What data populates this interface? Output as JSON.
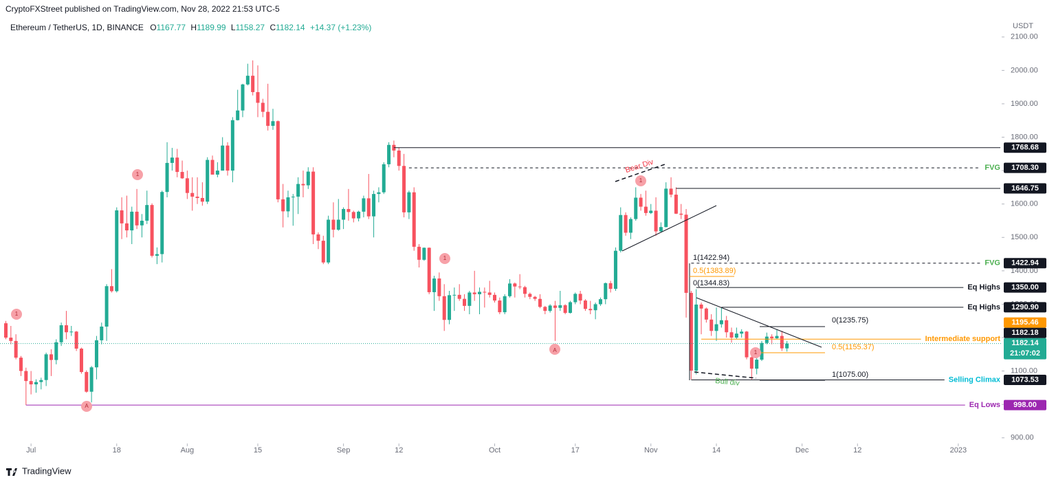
{
  "chart_data": {
    "type": "candlestick",
    "subtitle": "CryptoFXStreet published on TradingView.com, Nov 28, 2022 21:53 UTC-5",
    "title": "Ethereum / TetherUS, 1D, BINANCE",
    "ohlc_labels": [
      "O",
      "H",
      "L",
      "C"
    ],
    "change": "+14.37 (+1.23%)",
    "unit": "USDT",
    "footer": "TradingView",
    "up_color": "#22ab94",
    "down_color": "#f7525f",
    "ylim": [
      883,
      2149
    ],
    "yticks": [
      {
        "value": 2100,
        "label": "2100.00"
      },
      {
        "value": 2000,
        "label": "2000.00"
      },
      {
        "value": 1900,
        "label": "1900.00"
      },
      {
        "value": 1800,
        "label": "1800.00"
      },
      {
        "value": 1700,
        "label": "1700.00"
      },
      {
        "value": 1600,
        "label": "1600.00"
      },
      {
        "value": 1500,
        "label": "1500.00"
      },
      {
        "value": 1400,
        "label": "1400.00"
      },
      {
        "value": 1300,
        "label": "1300.00"
      },
      {
        "value": 1200,
        "label": "1200.00"
      },
      {
        "value": 1100,
        "label": "1100.00"
      },
      {
        "value": 1000,
        "label": "1000.00"
      },
      {
        "value": 900,
        "label": "900.00"
      }
    ],
    "xticks": [
      {
        "value": "Jul 1",
        "label": "Jul"
      },
      {
        "value": "Jul 18",
        "label": "18"
      },
      {
        "value": "Aug 1",
        "label": "Aug"
      },
      {
        "value": "Aug 15",
        "label": "15"
      },
      {
        "value": "Sep 1",
        "label": "Sep"
      },
      {
        "value": "Sep 12",
        "label": "12"
      },
      {
        "value": "Oct 1",
        "label": "Oct"
      },
      {
        "value": "Oct 17",
        "label": "17"
      },
      {
        "value": "Nov 1",
        "label": "Nov"
      },
      {
        "value": "Nov 14",
        "label": "14"
      },
      {
        "value": "Dec 1",
        "label": "Dec"
      },
      {
        "value": "Dec 12",
        "label": "12"
      },
      {
        "value": "Jan 1",
        "label": "2023"
      }
    ],
    "x": [
      "Jun 26",
      "Jun 27",
      "Jun 28",
      "Jun 29",
      "Jun 30",
      "Jul 1",
      "Jul 2",
      "Jul 3",
      "Jul 4",
      "Jul 5",
      "Jul 6",
      "Jul 7",
      "Jul 8",
      "Jul 9",
      "Jul 10",
      "Jul 11",
      "Jul 12",
      "Jul 13",
      "Jul 14",
      "Jul 15",
      "Jul 16",
      "Jul 17",
      "Jul 18",
      "Jul 19",
      "Jul 20",
      "Jul 21",
      "Jul 22",
      "Jul 23",
      "Jul 24",
      "Jul 25",
      "Jul 26",
      "Jul 27",
      "Jul 28",
      "Jul 29",
      "Jul 30",
      "Jul 31",
      "Aug 1",
      "Aug 2",
      "Aug 3",
      "Aug 4",
      "Aug 5",
      "Aug 6",
      "Aug 7",
      "Aug 8",
      "Aug 9",
      "Aug 10",
      "Aug 11",
      "Aug 12",
      "Aug 13",
      "Aug 14",
      "Aug 15",
      "Aug 16",
      "Aug 17",
      "Aug 18",
      "Aug 19",
      "Aug 20",
      "Aug 21",
      "Aug 22",
      "Aug 23",
      "Aug 24",
      "Aug 25",
      "Aug 26",
      "Aug 27",
      "Aug 28",
      "Aug 29",
      "Aug 30",
      "Aug 31",
      "Sep 1",
      "Sep 2",
      "Sep 3",
      "Sep 4",
      "Sep 5",
      "Sep 6",
      "Sep 7",
      "Sep 8",
      "Sep 9",
      "Sep 10",
      "Sep 11",
      "Sep 12",
      "Sep 13",
      "Sep 14",
      "Sep 15",
      "Sep 16",
      "Sep 17",
      "Sep 18",
      "Sep 19",
      "Sep 20",
      "Sep 21",
      "Sep 22",
      "Sep 23",
      "Sep 24",
      "Sep 25",
      "Sep 26",
      "Sep 27",
      "Sep 28",
      "Sep 29",
      "Sep 30",
      "Oct 1",
      "Oct 2",
      "Oct 3",
      "Oct 4",
      "Oct 5",
      "Oct 6",
      "Oct 7",
      "Oct 8",
      "Oct 9",
      "Oct 10",
      "Oct 11",
      "Oct 12",
      "Oct 13",
      "Oct 14",
      "Oct 15",
      "Oct 16",
      "Oct 17",
      "Oct 18",
      "Oct 19",
      "Oct 20",
      "Oct 21",
      "Oct 22",
      "Oct 23",
      "Oct 24",
      "Oct 25",
      "Oct 26",
      "Oct 27",
      "Oct 28",
      "Oct 29",
      "Oct 30",
      "Oct 31",
      "Nov 1",
      "Nov 2",
      "Nov 3",
      "Nov 4",
      "Nov 5",
      "Nov 6",
      "Nov 7",
      "Nov 8",
      "Nov 9",
      "Nov 10",
      "Nov 11",
      "Nov 12",
      "Nov 13",
      "Nov 14",
      "Nov 15",
      "Nov 16",
      "Nov 17",
      "Nov 18",
      "Nov 19",
      "Nov 20",
      "Nov 21",
      "Nov 22",
      "Nov 23",
      "Nov 24",
      "Nov 25",
      "Nov 26",
      "Nov 27",
      "Nov 28"
    ],
    "open": [
      1243,
      1200,
      1190,
      1140,
      1100,
      1070,
      1060,
      1067,
      1073,
      1150,
      1133,
      1186,
      1237,
      1216,
      1218,
      1167,
      1097,
      1038,
      1111,
      1192,
      1233,
      1354,
      1339,
      1581,
      1542,
      1521,
      1577,
      1536,
      1550,
      1597,
      1445,
      1450,
      1636,
      1723,
      1739,
      1696,
      1677,
      1633,
      1622,
      1618,
      1607,
      1732,
      1688,
      1700,
      1775,
      1700,
      1851,
      1880,
      1958,
      1984,
      1935,
      1903,
      1876,
      1834,
      1848,
      1614,
      1578,
      1620,
      1622,
      1660,
      1656,
      1697,
      1509,
      1490,
      1425,
      1553,
      1523,
      1553,
      1585,
      1576,
      1557,
      1577,
      1617,
      1563,
      1630,
      1635,
      1719,
      1777,
      1760,
      1714,
      1575,
      1635,
      1472,
      1433,
      1469,
      1336,
      1377,
      1324,
      1253,
      1327,
      1328,
      1316,
      1295,
      1335,
      1330,
      1337,
      1335,
      1328,
      1311,
      1276,
      1324,
      1362,
      1353,
      1351,
      1331,
      1322,
      1316,
      1292,
      1280,
      1296,
      1289,
      1297,
      1274,
      1306,
      1331,
      1311,
      1286,
      1282,
      1300,
      1315,
      1363,
      1346,
      1460,
      1567,
      1514,
      1555,
      1619,
      1592,
      1573,
      1580,
      1518,
      1531,
      1646,
      1628,
      1571,
      1568,
      1334,
      1101,
      1299,
      1287,
      1254,
      1220,
      1240,
      1252,
      1216,
      1200,
      1212,
      1218,
      1141,
      1107,
      1134,
      1184,
      1203,
      1198,
      1205,
      1167.77
    ],
    "high": [
      1250,
      1235,
      1210,
      1145,
      1110,
      1100,
      1075,
      1080,
      1155,
      1165,
      1195,
      1245,
      1280,
      1235,
      1220,
      1170,
      1102,
      1115,
      1205,
      1245,
      1360,
      1405,
      1590,
      1620,
      1625,
      1592,
      1645,
      1570,
      1640,
      1602,
      1470,
      1640,
      1785,
      1768,
      1765,
      1730,
      1700,
      1680,
      1680,
      1665,
      1740,
      1745,
      1725,
      1800,
      1785,
      1860,
      1942,
      1960,
      2020,
      2030,
      2015,
      1915,
      1960,
      1885,
      1850,
      1660,
      1640,
      1630,
      1680,
      1700,
      1710,
      1710,
      1515,
      1505,
      1565,
      1605,
      1615,
      1590,
      1645,
      1580,
      1580,
      1625,
      1690,
      1640,
      1650,
      1725,
      1785,
      1790,
      1768,
      1750,
      1640,
      1650,
      1480,
      1470,
      1470,
      1385,
      1395,
      1360,
      1340,
      1350,
      1360,
      1330,
      1340,
      1400,
      1350,
      1350,
      1370,
      1335,
      1320,
      1330,
      1375,
      1365,
      1390,
      1355,
      1335,
      1325,
      1330,
      1295,
      1300,
      1310,
      1340,
      1300,
      1310,
      1335,
      1340,
      1315,
      1310,
      1305,
      1320,
      1365,
      1370,
      1470,
      1590,
      1575,
      1560,
      1650,
      1630,
      1640,
      1600,
      1620,
      1545,
      1665,
      1680,
      1650,
      1600,
      1585,
      1340,
      1345,
      1305,
      1290,
      1270,
      1290,
      1290,
      1265,
      1230,
      1230,
      1225,
      1220,
      1145,
      1140,
      1190,
      1215,
      1210,
      1225,
      1220,
      1189.99
    ],
    "low": [
      1195,
      1180,
      1135,
      1085,
      998,
      1030,
      1035,
      1045,
      1055,
      1085,
      1120,
      1175,
      1195,
      1205,
      1160,
      1092,
      1035,
      1006,
      1075,
      1180,
      1190,
      1335,
      1335,
      1495,
      1500,
      1480,
      1525,
      1500,
      1540,
      1440,
      1420,
      1425,
      1620,
      1700,
      1680,
      1675,
      1615,
      1580,
      1600,
      1595,
      1600,
      1688,
      1680,
      1700,
      1685,
      1665,
      1850,
      1860,
      1955,
      1925,
      1860,
      1860,
      1820,
      1822,
      1605,
      1530,
      1560,
      1535,
      1570,
      1620,
      1645,
      1480,
      1465,
      1420,
      1420,
      1500,
      1520,
      1525,
      1550,
      1545,
      1548,
      1560,
      1555,
      1500,
      1605,
      1630,
      1710,
      1740,
      1700,
      1560,
      1555,
      1460,
      1410,
      1430,
      1330,
      1280,
      1310,
      1220,
      1240,
      1280,
      1310,
      1280,
      1270,
      1310,
      1270,
      1290,
      1320,
      1305,
      1270,
      1270,
      1320,
      1320,
      1345,
      1320,
      1315,
      1310,
      1288,
      1270,
      1275,
      1190,
      1280,
      1270,
      1272,
      1300,
      1300,
      1280,
      1270,
      1255,
      1295,
      1300,
      1335,
      1340,
      1455,
      1505,
      1495,
      1550,
      1580,
      1565,
      1570,
      1505,
      1515,
      1530,
      1620,
      1570,
      1555,
      1260,
      1075,
      1090,
      1210,
      1245,
      1205,
      1190,
      1230,
      1200,
      1185,
      1195,
      1200,
      1135,
      1075,
      1090,
      1130,
      1180,
      1180,
      1195,
      1160,
      1158.27
    ],
    "close": [
      1200,
      1190,
      1140,
      1100,
      1070,
      1060,
      1067,
      1073,
      1150,
      1133,
      1186,
      1237,
      1216,
      1218,
      1167,
      1097,
      1038,
      1111,
      1192,
      1233,
      1354,
      1339,
      1581,
      1542,
      1521,
      1577,
      1536,
      1550,
      1597,
      1445,
      1450,
      1636,
      1723,
      1739,
      1696,
      1677,
      1633,
      1622,
      1618,
      1607,
      1732,
      1688,
      1700,
      1775,
      1700,
      1851,
      1880,
      1958,
      1984,
      1935,
      1903,
      1876,
      1834,
      1848,
      1614,
      1578,
      1620,
      1622,
      1660,
      1656,
      1697,
      1509,
      1490,
      1425,
      1553,
      1523,
      1553,
      1585,
      1576,
      1557,
      1577,
      1617,
      1563,
      1630,
      1635,
      1719,
      1777,
      1760,
      1714,
      1575,
      1635,
      1472,
      1433,
      1469,
      1336,
      1377,
      1324,
      1253,
      1327,
      1328,
      1316,
      1295,
      1335,
      1330,
      1337,
      1335,
      1328,
      1311,
      1276,
      1324,
      1362,
      1353,
      1351,
      1331,
      1322,
      1316,
      1292,
      1280,
      1296,
      1289,
      1297,
      1274,
      1306,
      1331,
      1311,
      1286,
      1282,
      1300,
      1315,
      1363,
      1346,
      1460,
      1567,
      1514,
      1555,
      1619,
      1592,
      1573,
      1580,
      1518,
      1531,
      1646,
      1628,
      1571,
      1568,
      1334,
      1101,
      1299,
      1287,
      1254,
      1220,
      1240,
      1252,
      1216,
      1200,
      1212,
      1218,
      1141,
      1107,
      1134,
      1184,
      1203,
      1198,
      1205,
      1167.77,
      1182.14
    ],
    "last_price_color": "#22ab94",
    "countdown": "21:07:02",
    "levels": [
      {
        "value": 1768.68,
        "label": "1768.68",
        "from": "Sep 11",
        "color": "#131722",
        "style": "solid",
        "box_color": "#131722"
      },
      {
        "value": 1708.3,
        "label": "1708.30",
        "tag": "FVG",
        "tag_color": "#4caf50",
        "from": "Sep 14",
        "color": "#131722",
        "style": "dashed",
        "box_color": "#131722"
      },
      {
        "value": 1646.75,
        "label": "1646.75",
        "from": "Nov 6",
        "color": "#131722",
        "style": "solid",
        "box_color": "#131722"
      },
      {
        "value": 1422.94,
        "label": "1422.94",
        "tag": "FVG",
        "tag_color": "#4caf50",
        "from": "Nov 9",
        "color": "#131722",
        "style": "dashed",
        "box_color": "#131722"
      },
      {
        "value": 1350,
        "label": "1350.00",
        "tag": "Eq Highs",
        "tag_color": "#131722",
        "from": "Nov 10",
        "color": "#131722",
        "style": "solid",
        "box_color": "#131722"
      },
      {
        "value": 1290.9,
        "label": "1290.90",
        "tag": "Eq Highs",
        "tag_color": "#131722",
        "from": "Nov 15",
        "color": "#131722",
        "style": "solid",
        "box_color": "#131722"
      },
      {
        "value": 1195.46,
        "label": "1195.46",
        "tag": "Intermediate support",
        "tag_color": "#ff9800",
        "from": "Nov 11",
        "color": "#ff9800",
        "style": "solid",
        "box_color": "#ff9800"
      },
      {
        "value": 1182.18,
        "label": "1182.18",
        "box_color": "#131722"
      },
      {
        "value": 1073.53,
        "label": "1073.53",
        "tag": "Selling Climax",
        "tag_color": "#00bcd4",
        "from": "Nov 9",
        "color": "#131722",
        "style": "solid",
        "box_color": "#131722"
      },
      {
        "value": 998,
        "label": "998.00",
        "tag": "Eq Lows",
        "tag_color": "#9c27b0",
        "from": "Jun 30",
        "color": "#9c27b0",
        "style": "solid",
        "box_color": "#9c27b0"
      }
    ],
    "annotations": [
      "Bear Div",
      "Bull div",
      "1(1422.94)",
      "0.5(1383.89)",
      "0(1344.83)",
      "0(1235.75)",
      "0.5(1155.37)",
      "1(1075.00)"
    ],
    "markers": [
      "1",
      "1",
      "1",
      "1",
      "1",
      "A",
      "A"
    ]
  }
}
